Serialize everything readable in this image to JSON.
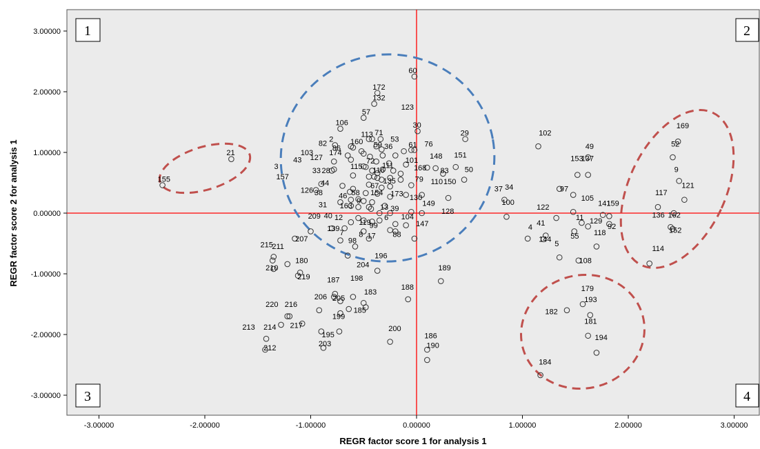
{
  "chart_data": {
    "type": "scatter",
    "xlabel": "REGR factor score   1 for analysis 1",
    "ylabel": "REGR factor score   2 for analysis 1",
    "xlim": [
      -3.3,
      3.3
    ],
    "ylim": [
      -3.3,
      3.3
    ],
    "x_ticks": [
      -3,
      -2,
      -1,
      0,
      1,
      2,
      3
    ],
    "y_ticks": [
      -3,
      -2,
      -1,
      0,
      1,
      2,
      3
    ],
    "x_tick_labels": [
      "-3.00000",
      "-2.00000",
      "-1.00000",
      "0.00000",
      "1.00000",
      "2.00000",
      "3.00000"
    ],
    "y_tick_labels": [
      "-3.00000",
      "-2.00000",
      "-1.00000",
      "0.00000",
      "1.00000",
      "2.00000",
      "3.00000"
    ],
    "quadrants": [
      "1",
      "2",
      "3",
      "4"
    ],
    "colors": {
      "plot_bg": "#ebebeb",
      "axis_lines": "#ff0000",
      "center_cluster": "#4a7ebb",
      "outlier_clusters": "#c0504d",
      "marker": "#333333"
    },
    "labeled_points": [
      {
        "id": "60",
        "x": -0.03,
        "y": 2.25
      },
      {
        "id": "172",
        "x": -0.37,
        "y": 1.98
      },
      {
        "id": "123",
        "x": -0.1,
        "y": 1.65
      },
      {
        "id": "57",
        "x": -0.47,
        "y": 1.57
      },
      {
        "id": "132",
        "x": -0.37,
        "y": 1.8
      },
      {
        "id": "106",
        "x": -0.72,
        "y": 1.39
      },
      {
        "id": "30",
        "x": 0.01,
        "y": 1.35
      },
      {
        "id": "71",
        "x": -0.35,
        "y": 1.23
      },
      {
        "id": "113",
        "x": -0.48,
        "y": 1.2
      },
      {
        "id": "53",
        "x": -0.2,
        "y": 1.12
      },
      {
        "id": "29",
        "x": 0.46,
        "y": 1.22
      },
      {
        "id": "2",
        "x": -0.78,
        "y": 1.12
      },
      {
        "id": "160",
        "x": -0.58,
        "y": 1.08
      },
      {
        "id": "82",
        "x": -0.88,
        "y": 1.05
      },
      {
        "id": "59",
        "x": -0.36,
        "y": 1.03
      },
      {
        "id": "36",
        "x": -0.26,
        "y": 1.0
      },
      {
        "id": "76",
        "x": 0.12,
        "y": 1.04
      },
      {
        "id": "86",
        "x": -0.75,
        "y": 0.97
      },
      {
        "id": "174",
        "x": -0.78,
        "y": 0.9
      },
      {
        "id": "61",
        "x": -0.03,
        "y": 1.03
      },
      {
        "id": "103",
        "x": -1.05,
        "y": 0.9
      },
      {
        "id": "127",
        "x": -0.96,
        "y": 0.82
      },
      {
        "id": "148",
        "x": 0.17,
        "y": 0.84
      },
      {
        "id": "151",
        "x": 0.4,
        "y": 0.86
      },
      {
        "id": "101",
        "x": -0.06,
        "y": 0.77
      },
      {
        "id": "43",
        "x": -1.12,
        "y": 0.78
      },
      {
        "id": "72",
        "x": -0.43,
        "y": 0.76
      },
      {
        "id": "111",
        "x": -0.28,
        "y": 0.69
      },
      {
        "id": "50",
        "x": 0.5,
        "y": 0.62
      },
      {
        "id": "115",
        "x": -0.58,
        "y": 0.67
      },
      {
        "id": "168",
        "x": 0.02,
        "y": 0.65
      },
      {
        "id": "3",
        "x": -1.3,
        "y": 0.67
      },
      {
        "id": "116",
        "x": -0.37,
        "y": 0.61
      },
      {
        "id": "83",
        "x": 0.27,
        "y": 0.6
      },
      {
        "id": "33",
        "x": -0.94,
        "y": 0.6
      },
      {
        "id": "28",
        "x": -0.85,
        "y": 0.6
      },
      {
        "id": "157",
        "x": -1.28,
        "y": 0.5
      },
      {
        "id": "135",
        "x": -0.27,
        "y": 0.43
      },
      {
        "id": "79",
        "x": 0.03,
        "y": 0.46
      },
      {
        "id": "110",
        "x": 0.18,
        "y": 0.42
      },
      {
        "id": "150",
        "x": 0.3,
        "y": 0.42
      },
      {
        "id": "44",
        "x": -0.86,
        "y": 0.4
      },
      {
        "id": "37",
        "x": 0.78,
        "y": 0.3
      },
      {
        "id": "34",
        "x": 0.88,
        "y": 0.33
      },
      {
        "id": "67",
        "x": -0.39,
        "y": 0.35
      },
      {
        "id": "126",
        "x": -1.05,
        "y": 0.28
      },
      {
        "id": "38",
        "x": -0.92,
        "y": 0.24
      },
      {
        "id": "173",
        "x": -0.2,
        "y": 0.22
      },
      {
        "id": "58",
        "x": -0.57,
        "y": 0.24
      },
      {
        "id": "21",
        "x": -1.75,
        "y": 0.9
      },
      {
        "id": "155",
        "x": -2.4,
        "y": 0.46
      },
      {
        "id": "46",
        "x": -0.69,
        "y": 0.19
      },
      {
        "id": "154",
        "x": -0.39,
        "y": 0.24
      },
      {
        "id": "130",
        "x": -0.02,
        "y": 0.16
      },
      {
        "id": "149",
        "x": 0.1,
        "y": 0.06
      },
      {
        "id": "100",
        "x": 0.85,
        "y": 0.08
      },
      {
        "id": "31",
        "x": -0.88,
        "y": 0.04
      },
      {
        "id": "163",
        "x": -0.68,
        "y": 0.02
      },
      {
        "id": "9",
        "x": -0.52,
        "y": 0.1
      },
      {
        "id": "13",
        "x": -0.3,
        "y": 0.0
      },
      {
        "id": "39",
        "x": -0.2,
        "y": -0.02
      },
      {
        "id": "128",
        "x": 0.28,
        "y": -0.07
      },
      {
        "id": "209",
        "x": -0.98,
        "y": -0.15
      },
      {
        "id": "40",
        "x": -0.83,
        "y": -0.14
      },
      {
        "id": "12",
        "x": -0.73,
        "y": -0.17
      },
      {
        "id": "6",
        "x": -0.26,
        "y": -0.17
      },
      {
        "id": "104",
        "x": -0.1,
        "y": -0.16
      },
      {
        "id": "119",
        "x": -0.5,
        "y": -0.25
      },
      {
        "id": "99",
        "x": -0.4,
        "y": -0.3
      },
      {
        "id": "147",
        "x": 0.04,
        "y": -0.27
      },
      {
        "id": "139",
        "x": -0.8,
        "y": -0.35
      },
      {
        "id": "7",
        "x": -0.68,
        "y": -0.42
      },
      {
        "id": "88",
        "x": -0.18,
        "y": -0.45
      },
      {
        "id": "8",
        "x": -0.5,
        "y": -0.45
      },
      {
        "id": "17",
        "x": -0.42,
        "y": -0.47
      },
      {
        "id": "98",
        "x": -0.6,
        "y": -0.55
      },
      {
        "id": "207",
        "x": -1.1,
        "y": -0.52
      },
      {
        "id": "215",
        "x": -1.43,
        "y": -0.62
      },
      {
        "id": "211",
        "x": -1.32,
        "y": -0.65
      },
      {
        "id": "196",
        "x": -0.35,
        "y": -0.8
      },
      {
        "id": "204",
        "x": -0.52,
        "y": -0.95
      },
      {
        "id": "180",
        "x": -1.1,
        "y": -0.88
      },
      {
        "id": "210",
        "x": -1.38,
        "y": -1.0
      },
      {
        "id": "189",
        "x": 0.25,
        "y": -1.0
      },
      {
        "id": "219",
        "x": -1.08,
        "y": -1.15
      },
      {
        "id": "187",
        "x": -0.8,
        "y": -1.2
      },
      {
        "id": "198",
        "x": -0.58,
        "y": -1.17
      },
      {
        "id": "188",
        "x": -0.1,
        "y": -1.32
      },
      {
        "id": "183",
        "x": -0.45,
        "y": -1.4
      },
      {
        "id": "206",
        "x": -0.92,
        "y": -1.48
      },
      {
        "id": "205",
        "x": -0.75,
        "y": -1.5
      },
      {
        "id": "220",
        "x": -1.38,
        "y": -1.6
      },
      {
        "id": "216",
        "x": -1.2,
        "y": -1.6
      },
      {
        "id": "185",
        "x": -0.55,
        "y": -1.7
      },
      {
        "id": "199",
        "x": -0.75,
        "y": -1.8
      },
      {
        "id": "217",
        "x": -1.15,
        "y": -1.95
      },
      {
        "id": "213",
        "x": -1.6,
        "y": -1.98
      },
      {
        "id": "214",
        "x": -1.4,
        "y": -1.98
      },
      {
        "id": "200",
        "x": -0.22,
        "y": -2.0
      },
      {
        "id": "195",
        "x": -0.85,
        "y": -2.1
      },
      {
        "id": "186",
        "x": 0.12,
        "y": -2.12
      },
      {
        "id": "203",
        "x": -0.88,
        "y": -2.25
      },
      {
        "id": "190",
        "x": 0.14,
        "y": -2.28
      },
      {
        "id": "212",
        "x": -1.4,
        "y": -2.32
      },
      {
        "id": "102",
        "x": 1.2,
        "y": 1.22
      },
      {
        "id": "49",
        "x": 1.64,
        "y": 1.0
      },
      {
        "id": "153",
        "x": 1.5,
        "y": 0.8
      },
      {
        "id": "137",
        "x": 1.6,
        "y": 0.8
      },
      {
        "id": "97",
        "x": 1.4,
        "y": 0.3
      },
      {
        "id": "105",
        "x": 1.6,
        "y": 0.15
      },
      {
        "id": "141",
        "x": 1.76,
        "y": 0.06
      },
      {
        "id": "159",
        "x": 1.84,
        "y": 0.06
      },
      {
        "id": "122",
        "x": 1.18,
        "y": 0.0
      },
      {
        "id": "11",
        "x": 1.55,
        "y": -0.17
      },
      {
        "id": "129",
        "x": 1.68,
        "y": -0.23
      },
      {
        "id": "92",
        "x": 1.85,
        "y": -0.32
      },
      {
        "id": "41",
        "x": 1.18,
        "y": -0.26
      },
      {
        "id": "4",
        "x": 1.1,
        "y": -0.33
      },
      {
        "id": "118",
        "x": 1.72,
        "y": -0.42
      },
      {
        "id": "144",
        "x": 1.2,
        "y": -0.53
      },
      {
        "id": "55",
        "x": 1.5,
        "y": -0.48
      },
      {
        "id": "5",
        "x": 1.35,
        "y": -0.6
      },
      {
        "id": "108",
        "x": 1.58,
        "y": -0.88
      },
      {
        "id": "169",
        "x": 2.5,
        "y": 1.34
      },
      {
        "id": "52",
        "x": 2.45,
        "y": 1.04
      },
      {
        "id": "9",
        "x": 2.48,
        "y": 0.62
      },
      {
        "id": "121",
        "x": 2.55,
        "y": 0.36
      },
      {
        "id": "117",
        "x": 2.3,
        "y": 0.24
      },
      {
        "id": "136",
        "x": 2.27,
        "y": -0.13
      },
      {
        "id": "162",
        "x": 2.42,
        "y": -0.13
      },
      {
        "id": "152",
        "x": 2.43,
        "y": -0.38
      },
      {
        "id": "114",
        "x": 2.27,
        "y": -0.68
      },
      {
        "id": "179",
        "x": 1.6,
        "y": -1.34
      },
      {
        "id": "193",
        "x": 1.63,
        "y": -1.52
      },
      {
        "id": "182",
        "x": 1.26,
        "y": -1.72
      },
      {
        "id": "181",
        "x": 1.63,
        "y": -1.88
      },
      {
        "id": "194",
        "x": 1.73,
        "y": -2.15
      },
      {
        "id": "184",
        "x": 1.2,
        "y": -2.55
      }
    ],
    "unlabeled_points": [
      [
        -0.02,
        2.25
      ],
      [
        -0.37,
        1.98
      ],
      [
        -0.4,
        1.8
      ],
      [
        -0.5,
        1.57
      ],
      [
        -0.72,
        1.39
      ],
      [
        0.01,
        1.35
      ],
      [
        -0.45,
        1.22
      ],
      [
        -0.42,
        1.22
      ],
      [
        -0.34,
        1.22
      ],
      [
        0.46,
        1.22
      ],
      [
        -0.6,
        1.08
      ],
      [
        -0.77,
        1.12
      ],
      [
        -0.62,
        1.1
      ],
      [
        -0.52,
        1.02
      ],
      [
        -0.38,
        1.1
      ],
      [
        -0.33,
        1.05
      ],
      [
        -0.05,
        1.04
      ],
      [
        -0.02,
        1.04
      ],
      [
        -0.65,
        0.95
      ],
      [
        -0.5,
        0.98
      ],
      [
        -0.44,
        0.93
      ],
      [
        -0.32,
        0.95
      ],
      [
        -0.2,
        0.95
      ],
      [
        -0.12,
        1.02
      ],
      [
        -0.78,
        0.85
      ],
      [
        -0.62,
        0.88
      ],
      [
        -0.38,
        0.85
      ],
      [
        -0.26,
        0.82
      ],
      [
        -0.1,
        0.8
      ],
      [
        0.1,
        0.75
      ],
      [
        0.18,
        0.74
      ],
      [
        0.37,
        0.76
      ],
      [
        -0.8,
        0.7
      ],
      [
        -0.78,
        0.72
      ],
      [
        -0.5,
        0.77
      ],
      [
        -0.48,
        0.76
      ],
      [
        -0.42,
        0.7
      ],
      [
        -0.37,
        0.66
      ],
      [
        -0.32,
        0.72
      ],
      [
        -0.22,
        0.7
      ],
      [
        -0.15,
        0.65
      ],
      [
        0.25,
        0.65
      ],
      [
        0.45,
        0.55
      ],
      [
        -0.6,
        0.62
      ],
      [
        -0.45,
        0.6
      ],
      [
        -0.4,
        0.6
      ],
      [
        -0.37,
        0.58
      ],
      [
        -0.33,
        0.55
      ],
      [
        -0.25,
        0.58
      ],
      [
        -0.15,
        0.55
      ],
      [
        -0.9,
        0.48
      ],
      [
        -0.7,
        0.45
      ],
      [
        -0.6,
        0.4
      ],
      [
        -0.45,
        0.47
      ],
      [
        -0.33,
        0.42
      ],
      [
        -0.25,
        0.44
      ],
      [
        -0.05,
        0.46
      ],
      [
        0.05,
        0.3
      ],
      [
        -0.95,
        0.38
      ],
      [
        -0.63,
        0.35
      ],
      [
        -0.48,
        0.33
      ],
      [
        -0.37,
        0.32
      ],
      [
        -0.25,
        0.27
      ],
      [
        -0.1,
        0.3
      ],
      [
        0.3,
        0.25
      ],
      [
        -0.72,
        0.18
      ],
      [
        -0.62,
        0.22
      ],
      [
        -0.55,
        0.23
      ],
      [
        -0.5,
        0.2
      ],
      [
        -0.42,
        0.18
      ],
      [
        -0.3,
        0.12
      ],
      [
        -0.62,
        0.12
      ],
      [
        -0.55,
        0.1
      ],
      [
        -0.45,
        0.1
      ],
      [
        -0.43,
        0.07
      ],
      [
        -0.05,
        0.02
      ],
      [
        0.05,
        0.0
      ],
      [
        -0.35,
        0.0
      ],
      [
        -0.25,
        0.0
      ],
      [
        -0.55,
        -0.08
      ],
      [
        -0.5,
        -0.12
      ],
      [
        -0.42,
        -0.14
      ],
      [
        -0.35,
        -0.12
      ],
      [
        -0.2,
        -0.18
      ],
      [
        -0.1,
        -0.2
      ],
      [
        -0.62,
        -0.15
      ],
      [
        -0.68,
        -0.25
      ],
      [
        -0.8,
        -0.25
      ],
      [
        -0.5,
        -0.3
      ],
      [
        -0.25,
        -0.28
      ],
      [
        -1.0,
        -0.3
      ],
      [
        -0.72,
        -0.45
      ],
      [
        -0.2,
        -0.3
      ],
      [
        -0.02,
        -0.42
      ],
      [
        -0.58,
        -0.55
      ],
      [
        -0.45,
        -0.42
      ],
      [
        -1.15,
        -0.42
      ],
      [
        -0.65,
        -0.7
      ],
      [
        -0.37,
        -0.95
      ],
      [
        -1.35,
        -0.72
      ],
      [
        -1.36,
        -0.78
      ],
      [
        -1.22,
        -0.84
      ],
      [
        -1.35,
        -0.92
      ],
      [
        -1.1,
        -0.98
      ],
      [
        -1.12,
        -1.03
      ],
      [
        -0.77,
        -1.33
      ],
      [
        -0.78,
        -1.38
      ],
      [
        -0.92,
        -1.6
      ],
      [
        -0.72,
        -1.45
      ],
      [
        -0.6,
        -1.38
      ],
      [
        -0.5,
        -1.48
      ],
      [
        -0.48,
        -1.55
      ],
      [
        -0.64,
        -1.58
      ],
      [
        -0.72,
        -1.65
      ],
      [
        -1.22,
        -1.7
      ],
      [
        -1.2,
        -1.7
      ],
      [
        -1.08,
        -1.82
      ],
      [
        -1.28,
        -1.84
      ],
      [
        -1.42,
        -2.07
      ],
      [
        -0.9,
        -1.95
      ],
      [
        -0.73,
        -1.95
      ],
      [
        -0.25,
        -2.12
      ],
      [
        0.1,
        -2.25
      ],
      [
        0.1,
        -2.42
      ],
      [
        -1.43,
        -2.25
      ],
      [
        -0.88,
        -2.22
      ],
      [
        -0.08,
        -1.42
      ],
      [
        0.23,
        -1.12
      ],
      [
        -2.4,
        0.46
      ],
      [
        -1.75,
        0.89
      ],
      [
        1.15,
        1.1
      ],
      [
        1.62,
        0.92
      ],
      [
        1.52,
        0.63
      ],
      [
        1.62,
        0.63
      ],
      [
        1.35,
        0.4
      ],
      [
        1.48,
        0.3
      ],
      [
        1.48,
        0.02
      ],
      [
        1.76,
        -0.03
      ],
      [
        1.82,
        -0.05
      ],
      [
        0.83,
        0.22
      ],
      [
        0.85,
        -0.06
      ],
      [
        1.32,
        -0.08
      ],
      [
        1.56,
        -0.16
      ],
      [
        1.62,
        -0.22
      ],
      [
        1.82,
        -0.18
      ],
      [
        1.49,
        -0.3
      ],
      [
        1.22,
        -0.37
      ],
      [
        1.2,
        -0.43
      ],
      [
        1.05,
        -0.42
      ],
      [
        1.7,
        -0.55
      ],
      [
        1.35,
        -0.73
      ],
      [
        1.53,
        -0.78
      ],
      [
        2.47,
        1.18
      ],
      [
        2.42,
        0.92
      ],
      [
        2.48,
        0.53
      ],
      [
        2.53,
        0.22
      ],
      [
        2.43,
        0.0
      ],
      [
        2.28,
        0.1
      ],
      [
        2.4,
        -0.23
      ],
      [
        2.42,
        -0.26
      ],
      [
        2.2,
        -0.83
      ],
      [
        1.57,
        -1.5
      ],
      [
        1.64,
        -1.68
      ],
      [
        1.42,
        -1.6
      ],
      [
        1.62,
        -2.02
      ],
      [
        1.7,
        -2.3
      ],
      [
        1.17,
        -2.67
      ]
    ]
  }
}
